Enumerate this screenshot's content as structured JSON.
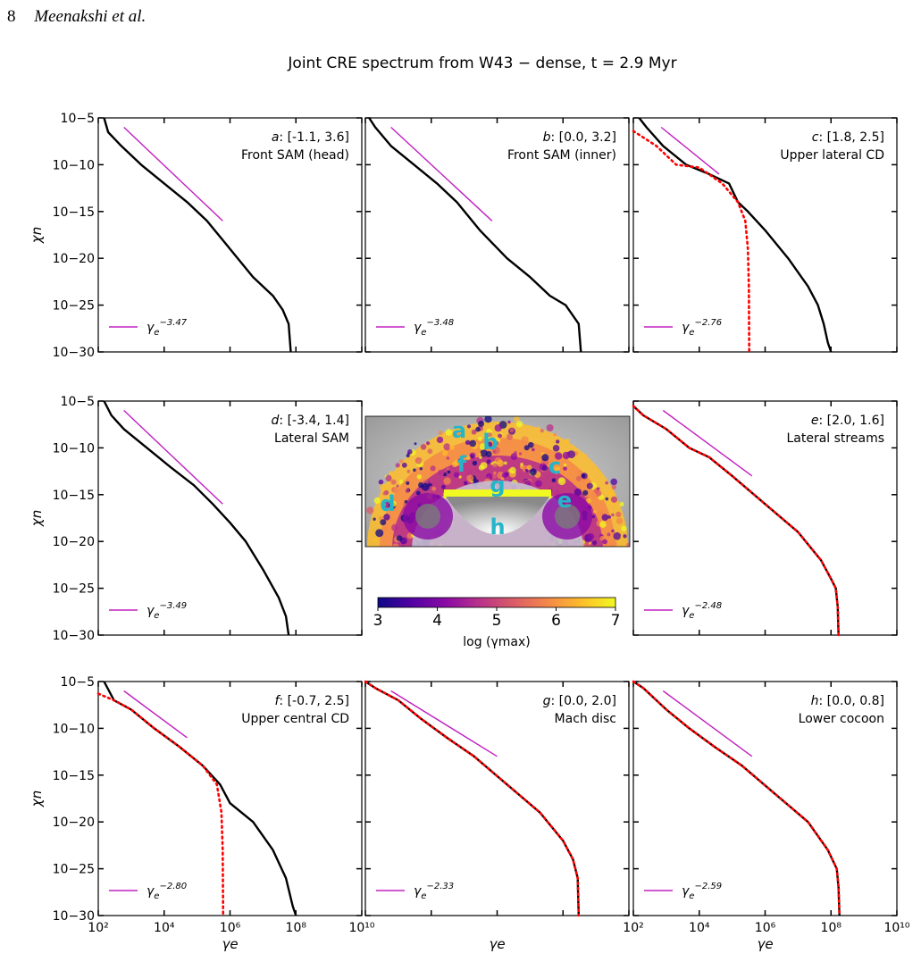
{
  "header": {
    "page_number": "8",
    "authors": "Meenakshi et al."
  },
  "figure": {
    "suptitle": "Joint CRE spectrum from W43 − dense,  t = 2.9 Myr",
    "inset": {
      "region_letters": [
        "a",
        "b",
        "c",
        "d",
        "e",
        "f",
        "g",
        "h"
      ],
      "colorbar": {
        "ticks": [
          "3",
          "4",
          "5",
          "6",
          "7"
        ],
        "label": "log (γmax)",
        "range": [
          3,
          7
        ]
      },
      "colormap": [
        "#0d0887",
        "#5302a3",
        "#8b0aa5",
        "#b83289",
        "#db5c68",
        "#f48849",
        "#febd2a",
        "#f0f921"
      ],
      "letter_color": "#26b5c8"
    },
    "colors": {
      "spectrum": "#000000",
      "fit": "#ff0000",
      "powerlaw": "#c020c0"
    }
  },
  "chart_data": [
    {
      "type": "line",
      "panel": "a",
      "label_letter": "a",
      "label_coords": ": [-1.1, 3.6]",
      "label_name": "Front SAM (head)",
      "legend": "γe^-3.47",
      "legend_base": "γ",
      "legend_sub": "e",
      "legend_sup": "−3.47",
      "xscale": "log",
      "yscale": "log",
      "xlim": [
        100,
        10000000000.0
      ],
      "ylim": [
        1e-30,
        1e-05
      ],
      "xticks": [],
      "yticks": [
        "10−5",
        "10−10",
        "10−15",
        "10−20",
        "10−25",
        "10−30"
      ],
      "xlabel": "",
      "ylabel": "χn",
      "spectrum": [
        [
          150,
          1e-05
        ],
        [
          200,
          3e-07
        ],
        [
          500,
          1e-08
        ],
        [
          2000,
          1e-10
        ],
        [
          10000,
          1e-12
        ],
        [
          50000,
          1e-14
        ],
        [
          200000,
          1e-16
        ],
        [
          1000000,
          1e-19
        ],
        [
          5000000,
          1e-22
        ],
        [
          20000000,
          1e-24
        ],
        [
          40000000,
          3e-26
        ],
        [
          60000000,
          1e-27
        ],
        [
          70000000,
          1e-30
        ]
      ],
      "fit": [],
      "powerlaw": [
        [
          600,
          1e-06
        ],
        [
          600000,
          1e-16
        ]
      ]
    },
    {
      "type": "line",
      "panel": "b",
      "label_letter": "b",
      "label_coords": ": [0.0, 3.2]",
      "label_name": "Front SAM (inner)",
      "legend": "γe^-3.48",
      "legend_base": "γ",
      "legend_sub": "e",
      "legend_sup": "−3.48",
      "xscale": "log",
      "yscale": "log",
      "xlim": [
        100,
        10000000000.0
      ],
      "ylim": [
        1e-30,
        1e-05
      ],
      "xticks": [],
      "yticks": [],
      "xlabel": "",
      "ylabel": "",
      "spectrum": [
        [
          130,
          1e-05
        ],
        [
          200,
          1e-06
        ],
        [
          600,
          1e-08
        ],
        [
          3000,
          1e-10
        ],
        [
          15000,
          1e-12
        ],
        [
          60000,
          1e-14
        ],
        [
          300000,
          1e-17
        ],
        [
          2000000,
          1e-20
        ],
        [
          10000000,
          1e-22
        ],
        [
          40000000,
          1e-24
        ],
        [
          120000000,
          1e-25
        ],
        [
          300000000,
          1e-27
        ],
        [
          350000000,
          1e-30
        ]
      ],
      "fit": [],
      "powerlaw": [
        [
          600,
          1e-06
        ],
        [
          700000,
          1e-16
        ]
      ]
    },
    {
      "type": "line",
      "panel": "c",
      "label_letter": "c",
      "label_coords": ": [1.8, 2.5]",
      "label_name": "Upper lateral CD",
      "legend": "γe^-2.76",
      "legend_base": "γ",
      "legend_sub": "e",
      "legend_sup": "−2.76",
      "xscale": "log",
      "yscale": "log",
      "xlim": [
        100,
        10000000000.0
      ],
      "ylim": [
        1e-30,
        1e-05
      ],
      "xticks": [],
      "yticks": [],
      "xlabel": "",
      "ylabel": "",
      "spectrum": [
        [
          150,
          1e-05
        ],
        [
          250,
          1e-06
        ],
        [
          800,
          1e-08
        ],
        [
          4000,
          1e-10
        ],
        [
          20000,
          1e-11
        ],
        [
          80000,
          1e-12
        ],
        [
          150000,
          1e-14
        ],
        [
          300000,
          1e-15
        ],
        [
          1000000,
          1e-17
        ],
        [
          5000000,
          1e-20
        ],
        [
          20000000,
          1e-23
        ],
        [
          40000000,
          1e-25
        ],
        [
          60000000,
          1e-27
        ],
        [
          80000000,
          1e-29
        ],
        [
          100000000,
          1e-30
        ]
      ],
      "fit": [
        [
          100,
          4e-07
        ],
        [
          500,
          1e-08
        ],
        [
          2000,
          1e-10
        ],
        [
          10000,
          5e-11
        ],
        [
          50000,
          1e-12
        ],
        [
          150000,
          1e-14
        ],
        [
          250000,
          1e-16
        ],
        [
          300000,
          1e-19
        ],
        [
          320000,
          1e-23
        ],
        [
          330000,
          1e-30
        ]
      ],
      "powerlaw": [
        [
          700,
          1e-06
        ],
        [
          40000,
          1e-11
        ]
      ]
    },
    {
      "type": "line",
      "panel": "d",
      "label_letter": "d",
      "label_coords": ": [-3.4, 1.4]",
      "label_name": "Lateral SAM",
      "legend": "γe^-3.49",
      "legend_base": "γ",
      "legend_sub": "e",
      "legend_sup": "−3.49",
      "xscale": "log",
      "yscale": "log",
      "xlim": [
        100,
        10000000000.0
      ],
      "ylim": [
        1e-30,
        1e-05
      ],
      "xticks": [],
      "yticks": [
        "10−5",
        "10−10",
        "10−15",
        "10−20",
        "10−25",
        "10−30"
      ],
      "xlabel": "",
      "ylabel": "χn",
      "spectrum": [
        [
          150,
          1e-05
        ],
        [
          250,
          3e-07
        ],
        [
          600,
          1e-08
        ],
        [
          3000,
          1e-10
        ],
        [
          15000,
          1e-12
        ],
        [
          80000,
          1e-14
        ],
        [
          300000,
          1e-16
        ],
        [
          1000000,
          1e-18
        ],
        [
          3000000,
          1e-20
        ],
        [
          10000000,
          1e-23
        ],
        [
          30000000,
          1e-26
        ],
        [
          50000000,
          1e-28
        ],
        [
          60000000,
          1e-30
        ]
      ],
      "fit": [],
      "powerlaw": [
        [
          600,
          1e-06
        ],
        [
          600000,
          1e-16
        ]
      ]
    },
    {
      "type": "line",
      "panel": "e",
      "label_letter": "e",
      "label_coords": ": [2.0, 1.6]",
      "label_name": "Lateral streams",
      "legend": "γe^-2.48",
      "legend_base": "γ",
      "legend_sub": "e",
      "legend_sup": "−2.48",
      "xscale": "log",
      "yscale": "log",
      "xlim": [
        100,
        10000000000.0
      ],
      "ylim": [
        1e-30,
        1e-05
      ],
      "xticks": [],
      "yticks": [],
      "xlabel": "",
      "ylabel": "",
      "spectrum": [
        [
          100,
          3e-06
        ],
        [
          200,
          3e-07
        ],
        [
          1000,
          1e-08
        ],
        [
          5000,
          1e-10
        ],
        [
          20000,
          1e-11
        ],
        [
          100000,
          1e-13
        ],
        [
          1000000,
          1e-16
        ],
        [
          10000000,
          1e-19
        ],
        [
          50000000,
          1e-22
        ],
        [
          100000000,
          1e-24
        ],
        [
          140000000,
          1e-25
        ],
        [
          160000000,
          1e-27
        ],
        [
          170000000,
          1e-30
        ]
      ],
      "fit": [
        [
          100,
          3e-06
        ],
        [
          200,
          3e-07
        ],
        [
          1000,
          1e-08
        ],
        [
          5000,
          1e-10
        ],
        [
          20000,
          1e-11
        ],
        [
          100000,
          1e-13
        ],
        [
          1000000,
          1e-16
        ],
        [
          10000000,
          1e-19
        ],
        [
          50000000,
          1e-22
        ],
        [
          100000000,
          1e-24
        ],
        [
          140000000,
          1e-25
        ],
        [
          160000000,
          1e-27
        ],
        [
          170000000,
          1e-30
        ]
      ],
      "powerlaw": [
        [
          800,
          1e-06
        ],
        [
          400000,
          1e-13
        ]
      ]
    },
    {
      "type": "line",
      "panel": "f",
      "label_letter": "f",
      "label_coords": ": [-0.7, 2.5]",
      "label_name": "Upper central CD",
      "legend": "γe^-2.80",
      "legend_base": "γ",
      "legend_sub": "e",
      "legend_sup": "−2.80",
      "xscale": "log",
      "yscale": "log",
      "xlim": [
        100,
        10000000000.0
      ],
      "ylim": [
        1e-30,
        1e-05
      ],
      "xticks": [
        "10²",
        "10⁴",
        "10⁶",
        "10⁸",
        "10¹⁰"
      ],
      "xtick_values": [
        100,
        10000,
        1000000,
        100000000,
        10000000000
      ],
      "yticks": [
        "10−5",
        "10−10",
        "10−15",
        "10−20",
        "10−25",
        "10−30"
      ],
      "xlabel": "γe",
      "ylabel": "χn",
      "spectrum": [
        [
          150,
          1e-05
        ],
        [
          300,
          1e-07
        ],
        [
          1000,
          1e-08
        ],
        [
          5000,
          1e-10
        ],
        [
          30000,
          1e-12
        ],
        [
          150000,
          1e-14
        ],
        [
          500000,
          1e-16
        ],
        [
          1000000,
          1e-18
        ],
        [
          5000000,
          1e-20
        ],
        [
          20000000,
          1e-23
        ],
        [
          50000000,
          1e-26
        ],
        [
          80000000,
          1e-29
        ],
        [
          100000000,
          1e-30
        ]
      ],
      "fit": [
        [
          100,
          5e-07
        ],
        [
          300,
          1e-07
        ],
        [
          1000,
          1e-08
        ],
        [
          5000,
          1e-10
        ],
        [
          30000,
          1e-12
        ],
        [
          150000,
          1e-14
        ],
        [
          400000,
          1e-16
        ],
        [
          550000,
          1e-19
        ],
        [
          600000,
          1e-23
        ],
        [
          620000,
          1e-30
        ]
      ],
      "powerlaw": [
        [
          600,
          1e-06
        ],
        [
          50000,
          1e-11
        ]
      ]
    },
    {
      "type": "line",
      "panel": "g",
      "label_letter": "g",
      "label_coords": ": [0.0, 2.0]",
      "label_name": "Mach disc",
      "legend": "γe^-2.33",
      "legend_base": "γ",
      "legend_sub": "e",
      "legend_sup": "−2.33",
      "xscale": "log",
      "yscale": "log",
      "xlim": [
        100,
        10000000000.0
      ],
      "ylim": [
        1e-30,
        1e-05
      ],
      "xticks": [],
      "xtick_values": [
        100,
        10000,
        1000000,
        100000000,
        10000000000
      ],
      "yticks": [],
      "xlabel": "γe",
      "ylabel": "",
      "spectrum": [
        [
          100,
          1e-05
        ],
        [
          200,
          2e-06
        ],
        [
          1000,
          1e-07
        ],
        [
          5000,
          1e-09
        ],
        [
          30000,
          1e-11
        ],
        [
          200000,
          1e-13
        ],
        [
          2000000,
          1e-16
        ],
        [
          20000000,
          1e-19
        ],
        [
          100000000,
          1e-22
        ],
        [
          200000000,
          1e-24
        ],
        [
          280000000,
          1e-26
        ],
        [
          300000000,
          1e-30
        ]
      ],
      "fit": [
        [
          100,
          1e-05
        ],
        [
          200,
          2e-06
        ],
        [
          1000,
          1e-07
        ],
        [
          5000,
          1e-09
        ],
        [
          30000,
          1e-11
        ],
        [
          200000,
          1e-13
        ],
        [
          2000000,
          1e-16
        ],
        [
          20000000,
          1e-19
        ],
        [
          100000000,
          1e-22
        ],
        [
          200000000,
          1e-24
        ],
        [
          280000000,
          1e-26
        ],
        [
          300000000,
          1e-30
        ]
      ],
      "powerlaw": [
        [
          600,
          1e-06
        ],
        [
          1000000,
          1e-13
        ]
      ]
    },
    {
      "type": "line",
      "panel": "h",
      "label_letter": "h",
      "label_coords": ": [0.0, 0.8]",
      "label_name": "Lower cocoon",
      "legend": "γe^-2.59",
      "legend_base": "γ",
      "legend_sub": "e",
      "legend_sup": "−2.59",
      "xscale": "log",
      "yscale": "log",
      "xlim": [
        100,
        10000000000.0
      ],
      "ylim": [
        1e-30,
        1e-05
      ],
      "xticks": [
        "10²",
        "10⁴",
        "10⁶",
        "10⁸",
        "10¹⁰"
      ],
      "xtick_values": [
        100,
        10000,
        1000000,
        100000000,
        10000000000
      ],
      "yticks": [],
      "xlabel": "γe",
      "ylabel": "",
      "spectrum": [
        [
          100,
          1e-05
        ],
        [
          200,
          2e-06
        ],
        [
          1000,
          1e-08
        ],
        [
          5000,
          1e-10
        ],
        [
          30000,
          1e-12
        ],
        [
          200000,
          1e-14
        ],
        [
          2000000,
          1e-17
        ],
        [
          20000000,
          1e-20
        ],
        [
          80000000,
          1e-23
        ],
        [
          150000000,
          1e-25
        ],
        [
          170000000,
          1e-27
        ],
        [
          180000000,
          1e-30
        ]
      ],
      "fit": [
        [
          100,
          1e-05
        ],
        [
          200,
          2e-06
        ],
        [
          1000,
          1e-08
        ],
        [
          5000,
          1e-10
        ],
        [
          30000,
          1e-12
        ],
        [
          200000,
          1e-14
        ],
        [
          2000000,
          1e-17
        ],
        [
          20000000,
          1e-20
        ],
        [
          80000000,
          1e-23
        ],
        [
          150000000,
          1e-25
        ],
        [
          170000000,
          1e-27
        ],
        [
          180000000,
          1e-30
        ]
      ],
      "powerlaw": [
        [
          800,
          1e-06
        ],
        [
          400000,
          1e-13
        ]
      ]
    }
  ]
}
